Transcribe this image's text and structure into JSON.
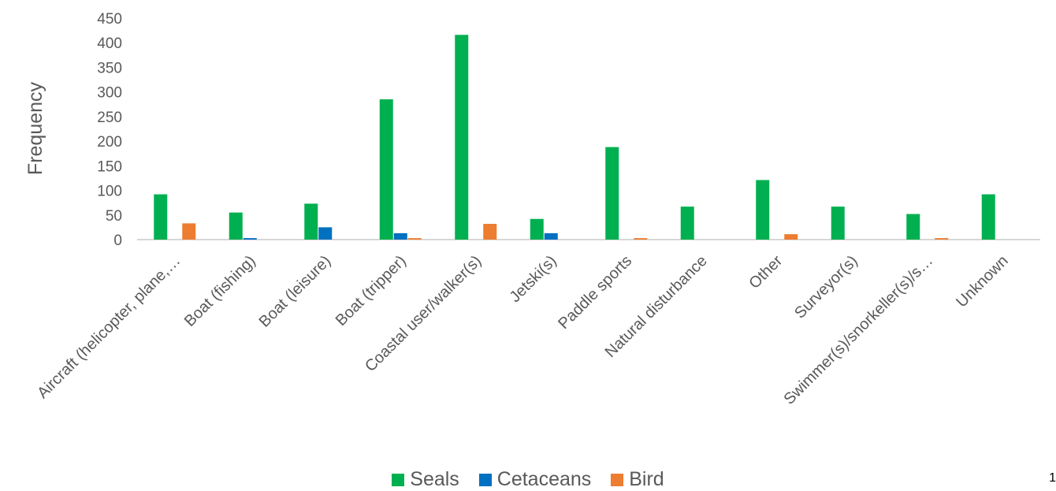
{
  "chart_data": {
    "type": "bar",
    "ylabel": "Frequency",
    "xlabel": "",
    "ylim": [
      0,
      450
    ],
    "ytick_step": 50,
    "yticks": [
      "0",
      "50",
      "100",
      "150",
      "200",
      "250",
      "300",
      "350",
      "400",
      "450"
    ],
    "grid": false,
    "legend_position": "bottom",
    "categories": [
      "Aircraft (helicopter, plane,…",
      "Boat (fishing)",
      "Boat (leisure)",
      "Boat (tripper)",
      "Coastal user/walker(s)",
      "Jetski(s)",
      "Paddle sports",
      "Natural disturbance",
      "Other",
      "Surveyor(s)",
      "Swimmer(s)/snorkeller(s)/s…",
      "Unknown"
    ],
    "series": [
      {
        "name": "Seals",
        "color": "#00B050",
        "values": [
          92,
          55,
          73,
          285,
          416,
          42,
          188,
          67,
          121,
          67,
          52,
          92
        ]
      },
      {
        "name": "Cetaceans",
        "color": "#0070C0",
        "values": [
          0,
          3,
          25,
          13,
          0,
          13,
          0,
          0,
          0,
          0,
          0,
          0
        ]
      },
      {
        "name": "Bird",
        "color": "#ED7D31",
        "values": [
          33,
          0,
          0,
          3,
          32,
          0,
          3,
          0,
          11,
          0,
          3,
          0
        ]
      }
    ]
  },
  "corner_mark": "1"
}
